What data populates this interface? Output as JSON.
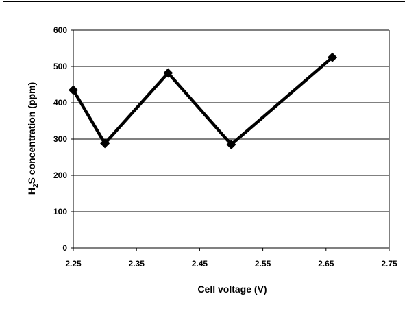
{
  "chart_data": {
    "type": "line",
    "xlabel": "Cell voltage (V)",
    "ylabel": "H2S concentration (ppm)",
    "ylabel_parts": {
      "a": "H",
      "sub": "2",
      "b": "S concentration (ppm)"
    },
    "xlim": [
      2.25,
      2.75
    ],
    "ylim": [
      0,
      600
    ],
    "x_ticks": [
      "2.25",
      "2.35",
      "2.45",
      "2.55",
      "2.65",
      "2.75"
    ],
    "y_ticks": [
      "0",
      "100",
      "200",
      "300",
      "400",
      "500",
      "600"
    ],
    "grid": "horizontal",
    "legend": "none",
    "marker": "diamond",
    "color": "#000000",
    "series": [
      {
        "x": [
          2.25,
          2.3,
          2.4,
          2.5,
          2.66
        ],
        "values": [
          435,
          288,
          482,
          285,
          525
        ]
      }
    ]
  }
}
